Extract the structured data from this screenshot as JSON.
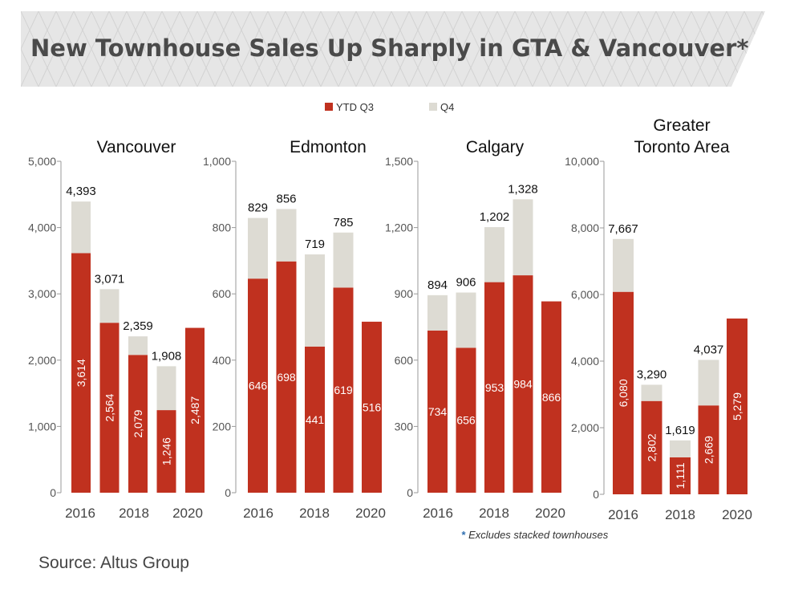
{
  "title": "New Townhouse Sales Up Sharply in GTA & Vancouver*",
  "legend": [
    {
      "label": "YTD Q3",
      "color": "#c0311f"
    },
    {
      "label": "Q4",
      "color": "#dddbd3"
    }
  ],
  "colors": {
    "ytd": "#c0311f",
    "q4": "#dddbd3",
    "axis": "#9a9a9a",
    "banner": "#e6e6e6"
  },
  "footnote": {
    "star": "*",
    "text": "Excludes stacked townhouses"
  },
  "source": "Source:  Altus Group",
  "chart_data": [
    {
      "type": "bar",
      "stacked": true,
      "title": "Vancouver",
      "categories": [
        "2016",
        "2017",
        "2018",
        "2019",
        "2020"
      ],
      "x_tick_labels": [
        "2016",
        "2018",
        "2020"
      ],
      "ylim": [
        0,
        5000
      ],
      "y_ticks": [
        0,
        1000,
        2000,
        3000,
        4000,
        5000
      ],
      "y_tick_labels": [
        "0",
        "1,000",
        "2,000",
        "3,000",
        "4,000",
        "5,000"
      ],
      "series": [
        {
          "name": "YTD Q3",
          "values": [
            3614,
            2564,
            2079,
            1246,
            2487
          ]
        },
        {
          "name": "Q4",
          "values": [
            779,
            507,
            280,
            662,
            null
          ]
        }
      ],
      "ytd_labels": [
        "3,614",
        "2,564",
        "2,079",
        "1,246",
        "2,487"
      ],
      "totals": [
        4393,
        3071,
        2359,
        1908,
        null
      ],
      "total_labels": [
        "4,393",
        "3,071",
        "2,359",
        "1,908",
        ""
      ]
    },
    {
      "type": "bar",
      "stacked": true,
      "title": "Edmonton",
      "categories": [
        "2016",
        "2017",
        "2018",
        "2019",
        "2020"
      ],
      "x_tick_labels": [
        "2016",
        "2018",
        "2020"
      ],
      "ylim": [
        0,
        1000
      ],
      "y_ticks": [
        0,
        200,
        400,
        600,
        800,
        1000
      ],
      "y_tick_labels": [
        "0",
        "200",
        "400",
        "600",
        "800",
        "1,000"
      ],
      "series": [
        {
          "name": "YTD Q3",
          "values": [
            646,
            698,
            441,
            619,
            516
          ]
        },
        {
          "name": "Q4",
          "values": [
            183,
            158,
            278,
            166,
            null
          ]
        }
      ],
      "ytd_labels": [
        "646",
        "698",
        "441",
        "619",
        "516"
      ],
      "totals": [
        829,
        856,
        719,
        785,
        null
      ],
      "total_labels": [
        "829",
        "856",
        "719",
        "785",
        ""
      ]
    },
    {
      "type": "bar",
      "stacked": true,
      "title": "Calgary",
      "categories": [
        "2016",
        "2017",
        "2018",
        "2019",
        "2020"
      ],
      "x_tick_labels": [
        "2016",
        "2018",
        "2020"
      ],
      "ylim": [
        0,
        1500
      ],
      "y_ticks": [
        0,
        300,
        600,
        900,
        1200,
        1500
      ],
      "y_tick_labels": [
        "0",
        "300",
        "600",
        "900",
        "1,200",
        "1,500"
      ],
      "series": [
        {
          "name": "YTD Q3",
          "values": [
            734,
            656,
            953,
            984,
            866
          ]
        },
        {
          "name": "Q4",
          "values": [
            160,
            250,
            249,
            344,
            null
          ]
        }
      ],
      "ytd_labels": [
        "734",
        "656",
        "953",
        "984",
        "866"
      ],
      "totals": [
        894,
        906,
        1202,
        1328,
        null
      ],
      "total_labels": [
        "894",
        "906",
        "1,202",
        "1,328",
        ""
      ]
    },
    {
      "type": "bar",
      "stacked": true,
      "title": "Greater Toronto Area",
      "title_lines": [
        "Greater",
        "Toronto Area"
      ],
      "categories": [
        "2016",
        "2017",
        "2018",
        "2019",
        "2020"
      ],
      "x_tick_labels": [
        "2016",
        "2018",
        "2020"
      ],
      "ylim": [
        0,
        10000
      ],
      "y_ticks": [
        0,
        2000,
        4000,
        6000,
        8000,
        10000
      ],
      "y_tick_labels": [
        "0",
        "2,000",
        "4,000",
        "6,000",
        "8,000",
        "10,000"
      ],
      "series": [
        {
          "name": "YTD Q3",
          "values": [
            6080,
            2802,
            1111,
            2669,
            5279
          ]
        },
        {
          "name": "Q4",
          "values": [
            1587,
            488,
            508,
            1368,
            null
          ]
        }
      ],
      "ytd_labels": [
        "6,080",
        "2,802",
        "1,111",
        "2,669",
        "5,279"
      ],
      "totals": [
        7667,
        3290,
        1619,
        4037,
        null
      ],
      "total_labels": [
        "7,667",
        "3,290",
        "1,619",
        "4,037",
        ""
      ]
    }
  ]
}
